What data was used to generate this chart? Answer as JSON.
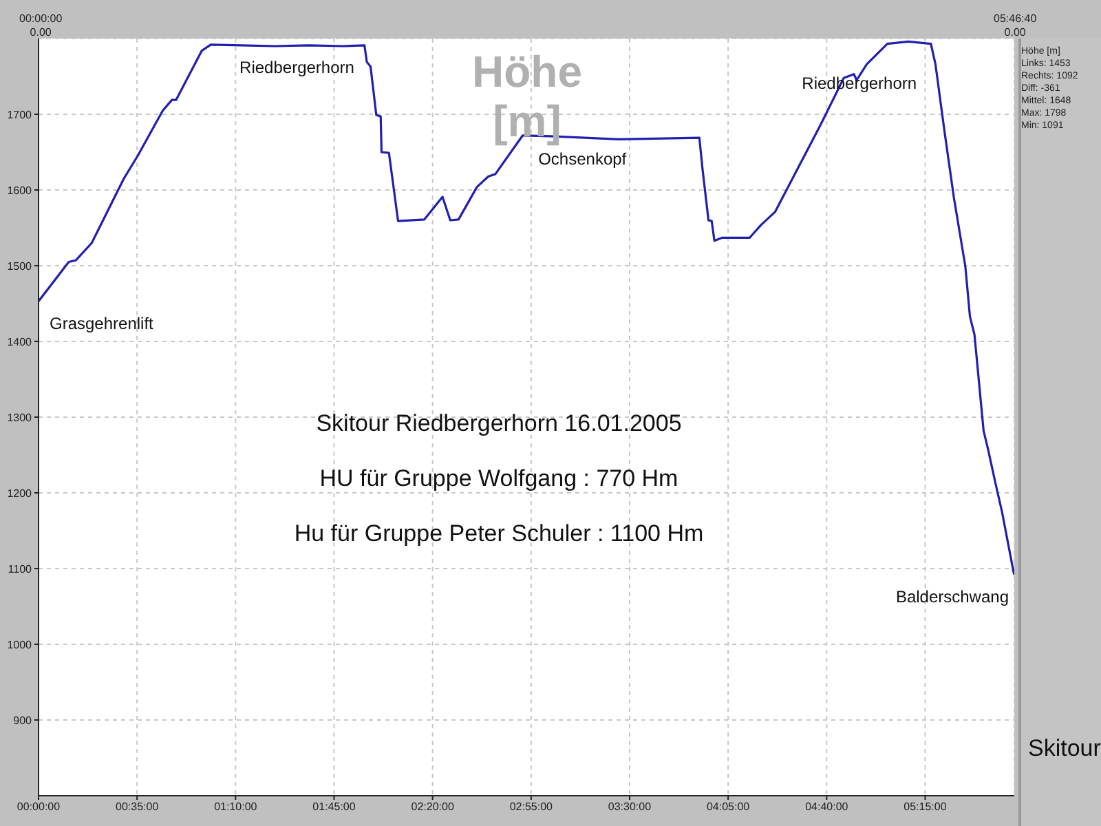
{
  "chart_data": {
    "type": "line",
    "ylabel": "Höhe [m]",
    "x": [
      0,
      0.179,
      0.22,
      0.315,
      0.505,
      0.587,
      0.736,
      0.79,
      0.815,
      0.967,
      1.02,
      1.2,
      1.4,
      1.6,
      1.8,
      1.93,
      1.944,
      1.966,
      2.0,
      2.026,
      2.031,
      2.075,
      2.129,
      2.284,
      2.392,
      2.438,
      2.487,
      2.596,
      2.664,
      2.705,
      2.867,
      3.03,
      3.437,
      3.913,
      3.932,
      3.967,
      3.986,
      4.002,
      4.049,
      4.211,
      4.279,
      4.361,
      4.633,
      4.768,
      4.828,
      4.844,
      4.904,
      5.026,
      5.15,
      5.284,
      5.311,
      5.366,
      5.42,
      5.488,
      5.515,
      5.542,
      5.596,
      5.623,
      5.664,
      5.705,
      5.773,
      5.7778
    ],
    "series": [
      {
        "color": "#2020b0",
        "values": [
          1453,
          1505,
          1507,
          1530,
          1615,
          1645,
          1705,
          1719,
          1719,
          1784,
          1792,
          1791,
          1790,
          1791,
          1790,
          1791,
          1769,
          1763,
          1699,
          1697,
          1650,
          1649,
          1559,
          1561,
          1591,
          1560,
          1561,
          1604,
          1618,
          1621,
          1672,
          1671,
          1667,
          1669,
          1627,
          1560,
          1559,
          1533,
          1537,
          1537,
          1554,
          1571,
          1687,
          1748,
          1753,
          1745,
          1766,
          1793,
          1796,
          1793,
          1766,
          1675,
          1590,
          1499,
          1433,
          1409,
          1282,
          1257,
          1215,
          1175,
          1096,
          1092
        ]
      }
    ],
    "xlim": [
      0,
      5.7778
    ],
    "xticks": [
      {
        "value": 0,
        "label": "00:00:00"
      },
      {
        "value": 0.5833,
        "label": "00:35:00"
      },
      {
        "value": 1.1667,
        "label": "01:10:00"
      },
      {
        "value": 1.75,
        "label": "01:45:00"
      },
      {
        "value": 2.3333,
        "label": "02:20:00"
      },
      {
        "value": 2.9167,
        "label": "02:55:00"
      },
      {
        "value": 3.5,
        "label": "03:30:00"
      },
      {
        "value": 4.0833,
        "label": "04:05:00"
      },
      {
        "value": 4.6667,
        "label": "04:40:00"
      },
      {
        "value": 5.25,
        "label": "05:15:00"
      }
    ],
    "ylim": [
      800,
      1800
    ],
    "yticks": [
      900,
      1000,
      1100,
      1200,
      1300,
      1400,
      1500,
      1600,
      1700
    ],
    "grid": true,
    "marker": "none",
    "line_style": "solid",
    "legend": false,
    "annotations": [
      "Skitour Riedbergerhorn 16.01.2005",
      "HU für Gruppe Wolfgang : 770 Hm",
      "Hu für Gruppe Peter Schuler : 1100 Hm",
      "00:00:00",
      "0.00",
      "05:46:40",
      "0.00",
      "Höhe [m]",
      "Links: 1453",
      "Rechts: 1092",
      "Diff: -361",
      "Mittel: 1648",
      "Max: 1798",
      "Min: 1091",
      "Skitour",
      {
        "text": "Grasgehrenlift",
        "x": 0,
        "y": 1453
      },
      {
        "text": "Riedbergerhorn",
        "x": 1.53,
        "y": 1791
      },
      {
        "text": "Ochsenkopf",
        "x": 3.22,
        "y": 1670
      },
      {
        "text": "Riedbergerhorn",
        "x": 4.86,
        "y": 1770
      },
      {
        "text": "Balderschwang",
        "x": 5.7778,
        "y": 1092
      }
    ]
  }
}
